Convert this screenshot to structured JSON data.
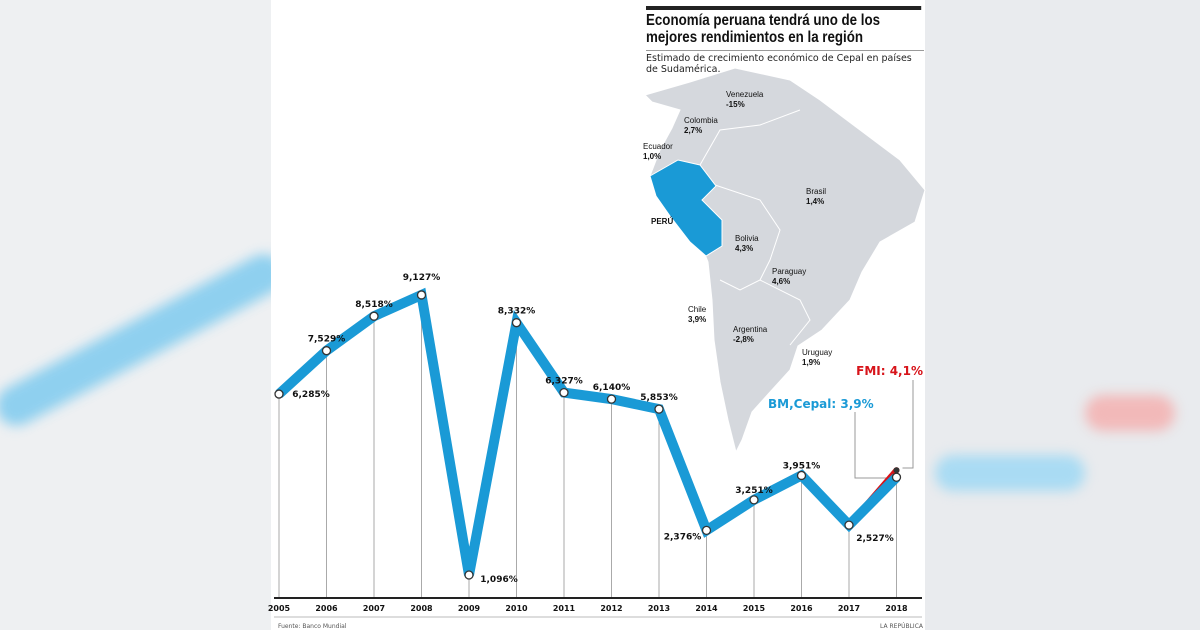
{
  "title": "Economía peruana tendrá uno de los mejores rendimientos en la región",
  "subtitle": "Estimado de crecimiento económico de Cepal en países de Sudamérica.",
  "source": "Fuente: Banco Mundial",
  "brand": "LA REPÚBLICA",
  "map": {
    "countries": [
      {
        "name": "Venezuela",
        "value": "-15%"
      },
      {
        "name": "Colombia",
        "value": "2,7%"
      },
      {
        "name": "Ecuador",
        "value": "1,0%"
      },
      {
        "name": "Brasil",
        "value": "1,4%"
      },
      {
        "name": "PERÚ",
        "value": ""
      },
      {
        "name": "Bolivia",
        "value": "4,3%"
      },
      {
        "name": "Paraguay",
        "value": "4,6%"
      },
      {
        "name": "Chile",
        "value": "3,9%"
      },
      {
        "name": "Argentina",
        "value": "-2,8%"
      },
      {
        "name": "Uruguay",
        "value": "1,9%"
      }
    ],
    "highlight_color": "#1a9ad6",
    "land_color": "#d5d8dd"
  },
  "chart_data": {
    "type": "line",
    "title": "",
    "xlabel": "",
    "ylabel": "",
    "grid": false,
    "categories": [
      "2005",
      "2006",
      "2007",
      "2008",
      "2009",
      "2010",
      "2011",
      "2012",
      "2013",
      "2014",
      "2015",
      "2016",
      "2017",
      "2018"
    ],
    "series": [
      {
        "name": "BM,Cepal: 3,9%",
        "color": "#1a9ad6",
        "values": [
          6.285,
          7.529,
          8.518,
          9.127,
          1.096,
          8.332,
          6.327,
          6.14,
          5.853,
          2.376,
          3.251,
          3.951,
          2.527,
          3.9
        ]
      },
      {
        "name": "FMI: 4,1%",
        "color": "#d7141a",
        "values": [
          null,
          null,
          null,
          null,
          null,
          null,
          null,
          null,
          null,
          null,
          null,
          null,
          2.527,
          4.1
        ]
      }
    ],
    "data_labels": [
      "6,285%",
      "7,529%",
      "8,518%",
      "9,127%",
      "1,096%",
      "8,332%",
      "6,327%",
      "6,140%",
      "5,853%",
      "2,376%",
      "3,251%",
      "3,951%",
      "2,527%",
      ""
    ],
    "annotations": {
      "bm": "BM,Cepal: 3,9%",
      "fmi": "FMI: 4,1%"
    }
  }
}
